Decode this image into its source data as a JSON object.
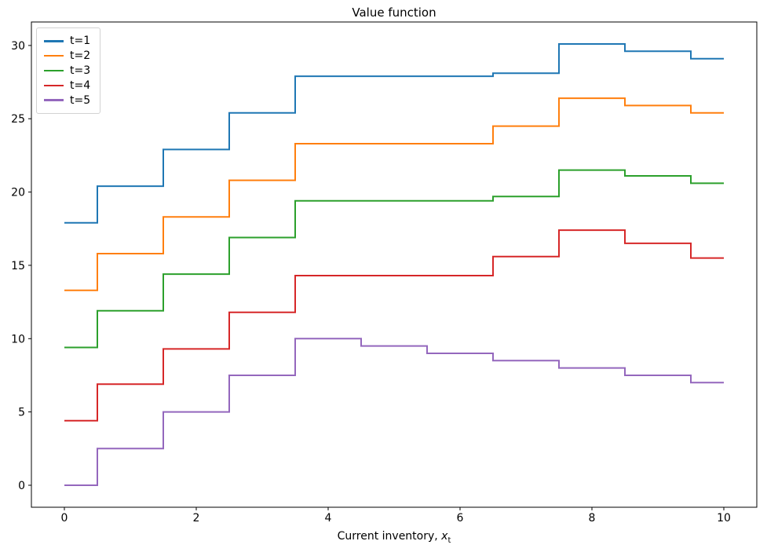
{
  "figure": {
    "xlabel_prefix": "Current inventory, ",
    "xlabel_var": "x",
    "xlabel_sub": "t"
  },
  "chart_data": {
    "type": "line",
    "subtype": "step-mid",
    "title": "Value function",
    "xlabel": "Current inventory, x_t",
    "ylabel": "",
    "grid": false,
    "legend_position": "upper-left",
    "xlim": [
      -0.5,
      10.5
    ],
    "ylim": [
      -1.5,
      31.6
    ],
    "xticks": [
      0,
      2,
      4,
      6,
      8,
      10
    ],
    "yticks": [
      0,
      5,
      10,
      15,
      20,
      25,
      30
    ],
    "x": [
      0,
      1,
      2,
      3,
      4,
      5,
      6,
      7,
      8,
      9,
      10
    ],
    "series": [
      {
        "name": "t=1",
        "color": "#1f77b4",
        "values": [
          17.9,
          20.4,
          22.9,
          25.4,
          27.9,
          27.9,
          27.9,
          28.1,
          30.1,
          29.6,
          29.1
        ]
      },
      {
        "name": "t=2",
        "color": "#ff7f0e",
        "values": [
          13.3,
          15.8,
          18.3,
          20.8,
          23.3,
          23.3,
          23.3,
          24.5,
          26.4,
          25.9,
          25.4
        ]
      },
      {
        "name": "t=3",
        "color": "#2ca02c",
        "values": [
          9.4,
          11.9,
          14.4,
          16.9,
          19.4,
          19.4,
          19.4,
          19.7,
          21.5,
          21.1,
          20.6
        ]
      },
      {
        "name": "t=4",
        "color": "#d62728",
        "values": [
          4.4,
          6.9,
          9.3,
          11.8,
          14.3,
          14.3,
          14.3,
          15.6,
          17.4,
          16.5,
          15.5
        ]
      },
      {
        "name": "t=5",
        "color": "#9467bd",
        "values": [
          0.0,
          2.5,
          5.0,
          7.5,
          10.0,
          9.5,
          9.0,
          8.5,
          8.0,
          7.5,
          7.0
        ]
      }
    ]
  }
}
